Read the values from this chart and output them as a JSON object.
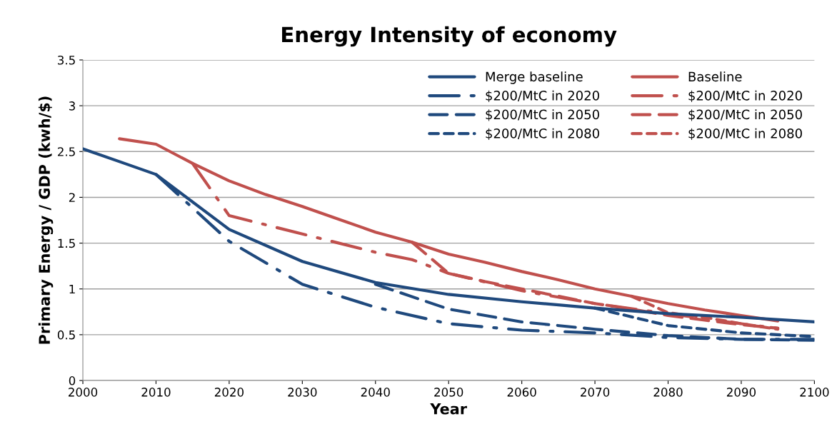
{
  "chart_data": {
    "type": "line",
    "title": "Energy Intensity of economy",
    "xlabel": "Year",
    "ylabel": "Primary Energy / GDP (kwh/$)",
    "xlim": [
      2000,
      2100
    ],
    "xticks": [
      2000,
      2010,
      2020,
      2030,
      2040,
      2050,
      2060,
      2070,
      2080,
      2090,
      2100
    ],
    "ylim": [
      0,
      3.5
    ],
    "yticks": [
      0,
      0.5,
      1,
      1.5,
      2,
      2.5,
      3,
      3.5
    ],
    "grid": "y",
    "legend": "top right",
    "series": [
      {
        "name": "Merge baseline",
        "color": "#1f497d",
        "line_style": "solid",
        "x": [
          2000,
          2005,
          2010,
          2020,
          2030,
          2040,
          2050,
          2060,
          2070,
          2080,
          2090,
          2100
        ],
        "values": [
          2.53,
          2.39,
          2.25,
          1.65,
          1.3,
          1.07,
          0.94,
          0.86,
          0.79,
          0.73,
          0.69,
          0.64
        ]
      },
      {
        "name": "Baseline",
        "color": "#c0504d",
        "line_style": "solid",
        "x": [
          2005,
          2010,
          2015,
          2020,
          2025,
          2030,
          2035,
          2040,
          2045,
          2050,
          2055,
          2060,
          2065,
          2070,
          2075,
          2080,
          2085,
          2090,
          2095
        ],
        "values": [
          2.64,
          2.58,
          2.37,
          2.18,
          2.03,
          1.9,
          1.76,
          1.62,
          1.51,
          1.38,
          1.29,
          1.19,
          1.1,
          1.0,
          0.92,
          0.84,
          0.77,
          0.71,
          0.65
        ]
      },
      {
        "name": "$200/MtC in 2020",
        "color": "#1f497d",
        "line_style": "dashdot",
        "x": [
          2010,
          2020,
          2030,
          2040,
          2050,
          2060,
          2070,
          2080,
          2090,
          2100
        ],
        "values": [
          2.25,
          1.52,
          1.05,
          0.8,
          0.62,
          0.55,
          0.52,
          0.47,
          0.45,
          0.45
        ]
      },
      {
        "name": "$200/MtC in 2020",
        "color": "#c0504d",
        "line_style": "dashdot",
        "x": [
          2015,
          2020,
          2030,
          2040,
          2045,
          2050,
          2060,
          2070,
          2080,
          2090,
          2095
        ],
        "values": [
          2.37,
          1.8,
          1.6,
          1.4,
          1.32,
          1.17,
          0.98,
          0.84,
          0.73,
          0.62,
          0.57
        ]
      },
      {
        "name": "$200/MtC in 2050",
        "color": "#1f497d",
        "line_style": "dashed",
        "x": [
          2040,
          2050,
          2060,
          2070,
          2080,
          2090,
          2100
        ],
        "values": [
          1.05,
          0.78,
          0.64,
          0.56,
          0.49,
          0.45,
          0.44
        ]
      },
      {
        "name": "$200/MtC in 2050",
        "color": "#c0504d",
        "line_style": "dashed",
        "x": [
          2045,
          2050,
          2055,
          2060,
          2065,
          2070,
          2075,
          2080,
          2085,
          2090,
          2095
        ],
        "values": [
          1.51,
          1.17,
          1.08,
          1.0,
          0.92,
          0.84,
          0.78,
          0.71,
          0.66,
          0.61,
          0.57
        ]
      },
      {
        "name": "$200/MtC in 2080",
        "color": "#1f497d",
        "line_style": "dotted",
        "x": [
          2070,
          2080,
          2090,
          2100
        ],
        "values": [
          0.79,
          0.6,
          0.52,
          0.48
        ]
      },
      {
        "name": "$200/MtC in 2080",
        "color": "#c0504d",
        "line_style": "dotted",
        "x": [
          2075,
          2080,
          2085,
          2090,
          2095
        ],
        "values": [
          0.92,
          0.74,
          0.69,
          0.62,
          0.56
        ]
      }
    ]
  }
}
